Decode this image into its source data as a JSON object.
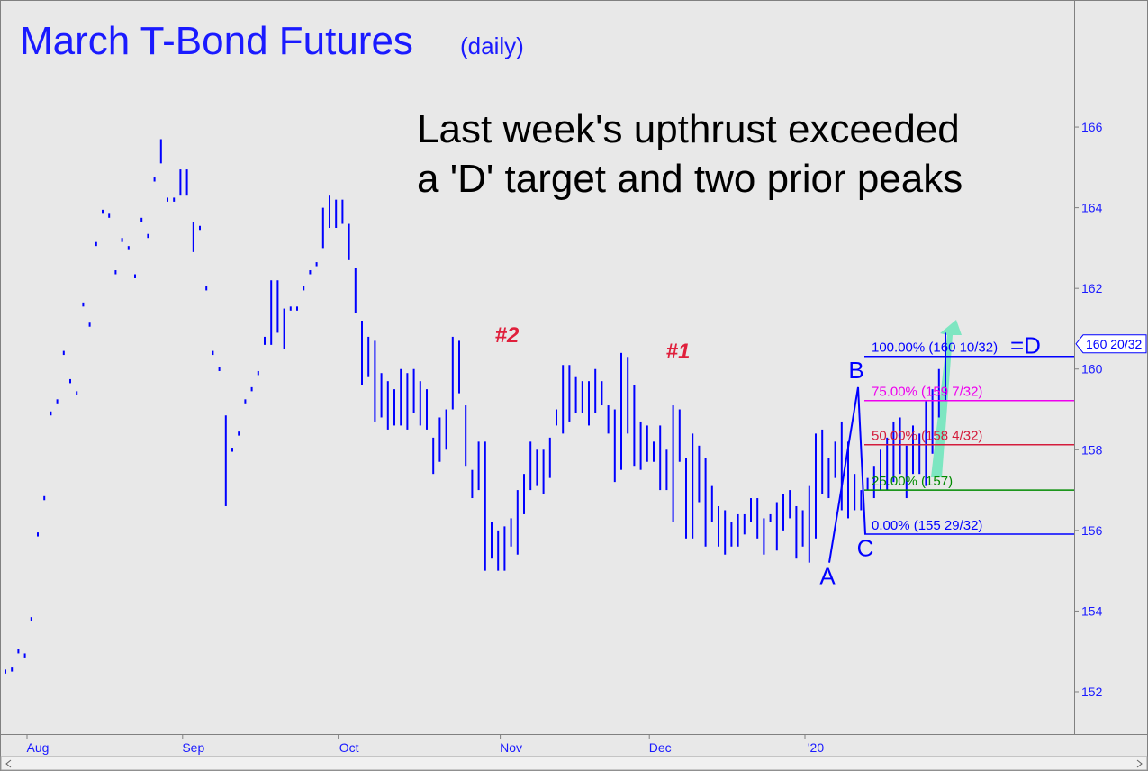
{
  "chart_data": {
    "type": "ohlc",
    "title": "March T-Bond Futures",
    "subtitle": "(daily)",
    "annotation": [
      "Last week's upthrust exceeded",
      "a 'D' target and two prior peaks"
    ],
    "peaks": [
      {
        "label": "#2",
        "value": 160.8
      },
      {
        "label": "#1",
        "value": 160.4
      }
    ],
    "color": "#0000ff",
    "categories": [
      null,
      null,
      null,
      null,
      null,
      "Aug",
      null,
      null,
      null,
      null,
      null,
      null,
      null,
      null,
      null,
      null,
      null,
      null,
      null,
      null,
      null,
      null,
      null,
      null,
      null,
      null,
      null,
      null,
      null,
      "Sep",
      null,
      null,
      null,
      null,
      null,
      null,
      null,
      null,
      null,
      null,
      null,
      null,
      null,
      null,
      null,
      null,
      null,
      null,
      null,
      null,
      null,
      null,
      null,
      "Oct",
      null,
      null,
      null,
      null,
      null,
      null,
      null,
      null,
      null,
      null,
      null,
      null,
      null,
      null,
      null,
      null,
      null,
      null,
      null,
      null,
      null,
      null,
      null,
      null,
      "Nov",
      null,
      null,
      null,
      null,
      null,
      null,
      null,
      null,
      null,
      null,
      null,
      null,
      null,
      null,
      null,
      null,
      null,
      null,
      null,
      null,
      null,
      null,
      "Dec",
      null,
      null,
      null,
      null,
      null,
      null,
      null,
      null,
      null,
      null,
      null,
      null,
      null,
      null,
      null,
      null,
      null,
      null,
      null,
      null,
      null,
      null,
      null,
      "'20",
      null,
      null,
      null,
      null,
      null,
      null,
      null,
      null,
      null,
      null,
      null,
      null,
      null,
      null,
      null,
      null,
      null,
      null,
      null,
      null
    ],
    "high": [
      152.55,
      152.6,
      153.05,
      152.95,
      153.85,
      155.95,
      156.85,
      158.95,
      159.25,
      160.45,
      159.75,
      159.45,
      161.65,
      161.15,
      163.15,
      163.95,
      163.85,
      162.45,
      163.25,
      163.05,
      162.35,
      163.75,
      163.35,
      164.75,
      165.7,
      164.25,
      164.25,
      164.95,
      164.95,
      163.65,
      163.55,
      162.05,
      160.45,
      160.05,
      158.85,
      158.05,
      158.45,
      159.25,
      159.55,
      159.95,
      160.8,
      162.2,
      162.2,
      161.5,
      161.55,
      161.55,
      162.05,
      162.45,
      162.65,
      164.0,
      164.3,
      164.2,
      164.2,
      163.6,
      162.5,
      161.2,
      160.8,
      160.7,
      159.9,
      159.7,
      159.5,
      160.0,
      159.9,
      160.0,
      159.7,
      159.5,
      158.3,
      158.8,
      159.0,
      160.8,
      160.7,
      159.1,
      157.5,
      158.2,
      158.2,
      156.2,
      156.0,
      156.1,
      156.3,
      157.0,
      157.4,
      158.2,
      158.0,
      158.0,
      158.3,
      159.0,
      160.1,
      160.1,
      159.8,
      159.7,
      159.7,
      160.0,
      159.7,
      159.1,
      159.0,
      160.4,
      160.3,
      159.6,
      158.7,
      158.6,
      158.2,
      158.6,
      158.0,
      159.1,
      159.0,
      157.8,
      158.4,
      158.1,
      157.8,
      157.1,
      156.6,
      156.5,
      156.2,
      156.4,
      156.4,
      156.8,
      156.8,
      156.3,
      156.4,
      156.7,
      156.9,
      157.0,
      156.6,
      156.5,
      157.1,
      158.4,
      158.5,
      157.8,
      158.2,
      158.7,
      158.2,
      157.4,
      157.0,
      157.3,
      157.6,
      158.0,
      158.3,
      158.7,
      158.8,
      158.1,
      158.6,
      158.4,
      159.2,
      159.5,
      160.0,
      160.9
    ],
    "low": [
      152.45,
      152.5,
      152.95,
      152.85,
      153.75,
      155.85,
      156.75,
      158.85,
      159.15,
      160.35,
      159.65,
      159.35,
      161.55,
      161.05,
      163.05,
      163.85,
      163.75,
      162.35,
      163.15,
      162.95,
      162.25,
      163.65,
      163.25,
      164.65,
      165.1,
      164.15,
      164.15,
      164.3,
      164.3,
      162.9,
      163.45,
      161.95,
      160.35,
      159.95,
      156.6,
      157.95,
      158.35,
      159.15,
      159.45,
      159.85,
      160.6,
      160.6,
      160.9,
      160.5,
      161.45,
      161.45,
      161.95,
      162.35,
      162.55,
      163.0,
      163.5,
      163.5,
      163.6,
      162.7,
      161.4,
      159.6,
      159.8,
      158.7,
      158.8,
      158.5,
      158.6,
      158.6,
      158.5,
      158.9,
      158.6,
      158.5,
      157.4,
      157.7,
      158.0,
      159.0,
      159.4,
      157.6,
      156.8,
      157.0,
      155.0,
      155.3,
      155.0,
      155.0,
      155.6,
      155.4,
      156.4,
      157.0,
      157.1,
      156.9,
      157.3,
      158.6,
      158.4,
      158.7,
      158.9,
      158.9,
      158.6,
      158.9,
      159.1,
      158.4,
      157.2,
      157.5,
      158.4,
      157.6,
      157.5,
      157.7,
      157.7,
      157.0,
      157.0,
      156.2,
      157.7,
      155.8,
      155.8,
      156.7,
      155.6,
      156.2,
      155.6,
      155.4,
      155.6,
      155.6,
      155.9,
      156.2,
      155.8,
      155.4,
      156.2,
      155.5,
      156.0,
      156.3,
      155.3,
      155.6,
      155.2,
      155.8,
      156.9,
      156.8,
      157.3,
      156.5,
      156.3,
      156.5,
      156.5,
      157.0,
      156.8,
      157.0,
      157.0,
      157.2,
      157.4,
      156.8,
      157.4,
      157.4,
      157.1,
      157.9,
      158.8,
      159.2
    ],
    "ylim": [
      150.95,
      169.15
    ],
    "yticks": [
      152,
      154,
      156,
      158,
      160,
      162,
      164,
      166
    ],
    "abc": [
      {
        "label": "A",
        "value": 155.2
      },
      {
        "label": "B",
        "value": 159.55
      },
      {
        "label": "C",
        "value": 155.9
      }
    ],
    "d_label": "=D",
    "levels": [
      {
        "label": "100.00% (160 10/32)",
        "value": 160.3125,
        "color": "#0000ff"
      },
      {
        "label": "75.00% (159 7/32)",
        "value": 159.21875,
        "color": "#ee00ee"
      },
      {
        "label": "50.00% (158 4/32)",
        "value": 158.125,
        "color": "#d41c3c"
      },
      {
        "label": "25.00% (157)",
        "value": 157.0,
        "color": "#008a00"
      },
      {
        "label": "0.00% (155 29/32)",
        "value": 155.90625,
        "color": "#0000ff"
      }
    ],
    "last_price": {
      "value": 160.625,
      "label": "160 20/32"
    },
    "grid": false
  }
}
